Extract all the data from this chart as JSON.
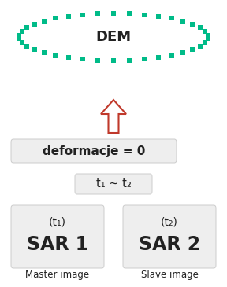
{
  "bg_color": "#ffffff",
  "box_color": "#eeeeee",
  "box_edge": "#cccccc",
  "arrow_color": "#c0392b",
  "ellipse_color": "#00bb88",
  "text_color": "#222222",
  "label_master": "Master image",
  "label_slave": "Slave image",
  "sar1_main": "SAR 1",
  "sar1_sub": "(t₁)",
  "sar2_main": "SAR 2",
  "sar2_sub": "(t₂)",
  "time_eq": "t₁ ~ t₂",
  "deform_text": "deformacje = 0",
  "dem_text": "DEM",
  "fig_w": 2.88,
  "fig_h": 3.65,
  "dpi": 100
}
